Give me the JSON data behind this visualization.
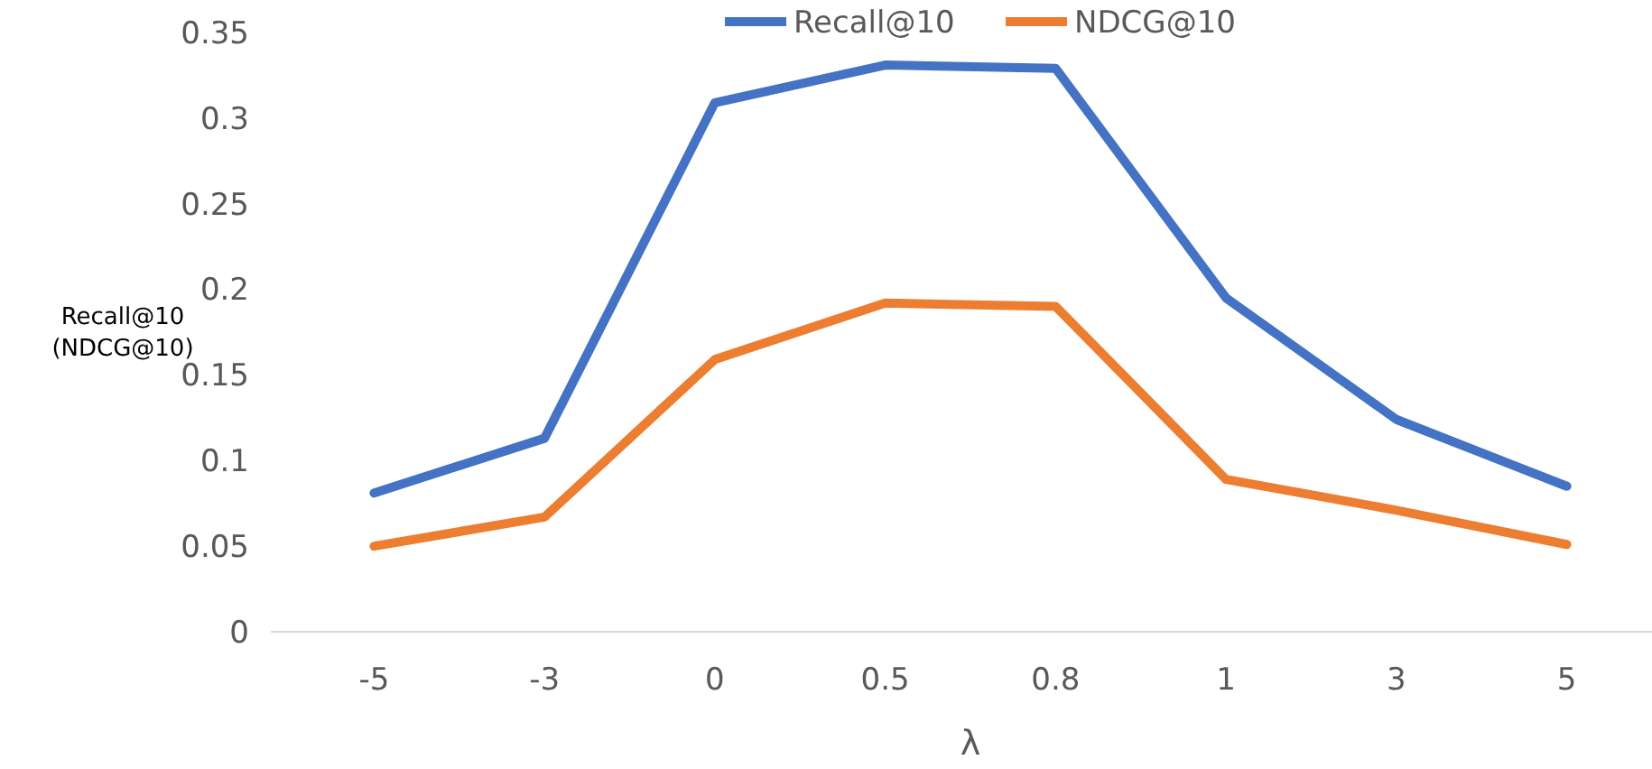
{
  "chart_data": {
    "type": "line",
    "xlabel": "λ",
    "ylabel": "Recall@10\n(NDCG@10)",
    "categories": [
      "-5",
      "-3",
      "0",
      "0.5",
      "0.8",
      "1",
      "3",
      "5"
    ],
    "series": [
      {
        "name": "Recall@10",
        "color": "#4472c4",
        "values": [
          0.081,
          0.113,
          0.309,
          0.331,
          0.329,
          0.195,
          0.124,
          0.085
        ]
      },
      {
        "name": "NDCG@10",
        "color": "#ed7d31",
        "values": [
          0.05,
          0.067,
          0.159,
          0.192,
          0.19,
          0.089,
          0.071,
          0.051
        ]
      }
    ],
    "ylim": [
      0,
      0.35
    ],
    "yticks": [
      0,
      0.05,
      0.1,
      0.15,
      0.2,
      0.25,
      0.3,
      0.35
    ],
    "grid": false,
    "legend": "top",
    "marker": "none",
    "line_style": "solid"
  }
}
